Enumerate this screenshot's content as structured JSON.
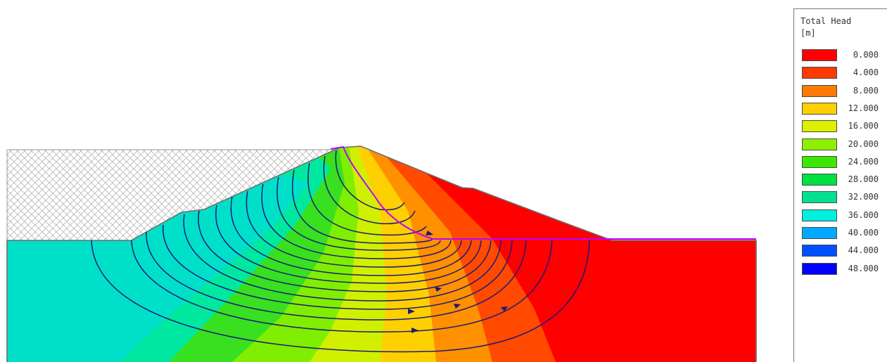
{
  "legend": {
    "title": "Total Head",
    "unit": "[m]",
    "entries": [
      {
        "label": "0.000",
        "color": "#ff0000"
      },
      {
        "label": "4.000",
        "color": "#ff3a00"
      },
      {
        "label": "8.000",
        "color": "#ff7a00"
      },
      {
        "label": "12.000",
        "color": "#ffd000"
      },
      {
        "label": "16.000",
        "color": "#dcf000"
      },
      {
        "label": "20.000",
        "color": "#8ef000"
      },
      {
        "label": "24.000",
        "color": "#3ce800"
      },
      {
        "label": "28.000",
        "color": "#00e040"
      },
      {
        "label": "32.000",
        "color": "#00e090"
      },
      {
        "label": "36.000",
        "color": "#00f0e0"
      },
      {
        "label": "40.000",
        "color": "#00a8ff"
      },
      {
        "label": "44.000",
        "color": "#0050ff"
      },
      {
        "label": "48.000",
        "color": "#0000ff"
      }
    ]
  },
  "colors": {
    "flow_line": "#1a1a7a",
    "phreatic_line": "#c000ff",
    "hatch": "#9a9a9a",
    "boundary": "#6e6e6e"
  }
}
